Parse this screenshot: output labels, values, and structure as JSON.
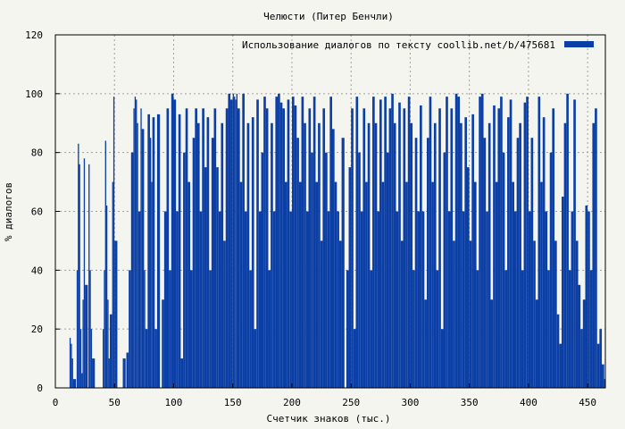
{
  "chart_data": {
    "type": "bar",
    "title": "Челюсти (Питер Бенчли)",
    "xlabel": "Счетчик знаков (тыс.)",
    "ylabel": "% диалогов",
    "xlim": [
      0,
      465
    ],
    "ylim": [
      0,
      120
    ],
    "xticks": [
      0,
      50,
      100,
      150,
      200,
      250,
      300,
      350,
      400,
      450
    ],
    "yticks": [
      0,
      20,
      40,
      60,
      80,
      100,
      120
    ],
    "grid": true,
    "legend_position": "top-right",
    "series": [
      {
        "name": "Использование диалогов по тексту  coollib.net/b/475681",
        "color": "#0b3fa6",
        "x": [
          12,
          13,
          14,
          15,
          18,
          19,
          20,
          21,
          22,
          23,
          24,
          25,
          28,
          29,
          30,
          31,
          40,
          41,
          42,
          43,
          44,
          45,
          46,
          48,
          49,
          50,
          57,
          60,
          62,
          64,
          66,
          67,
          68,
          69,
          70,
          72,
          73,
          75,
          76,
          78,
          80,
          81,
          82,
          84,
          86,
          90,
          92,
          94,
          96,
          98,
          100,
          102,
          104,
          106,
          108,
          110,
          112,
          114,
          116,
          118,
          120,
          122,
          124,
          126,
          128,
          130,
          132,
          134,
          136,
          138,
          140,
          142,
          144,
          146,
          148,
          150,
          151,
          152,
          153,
          154,
          156,
          158,
          160,
          162,
          164,
          166,
          168,
          170,
          172,
          174,
          176,
          178,
          180,
          182,
          184,
          186,
          188,
          190,
          192,
          194,
          196,
          198,
          200,
          202,
          204,
          206,
          208,
          210,
          212,
          214,
          216,
          218,
          220,
          222,
          224,
          226,
          228,
          230,
          232,
          234,
          236,
          238,
          240,
          242,
          246,
          248,
          250,
          252,
          254,
          256,
          258,
          260,
          262,
          264,
          266,
          268,
          270,
          272,
          274,
          276,
          278,
          280,
          282,
          284,
          286,
          288,
          290,
          292,
          294,
          296,
          298,
          300,
          302,
          304,
          306,
          308,
          310,
          312,
          314,
          316,
          318,
          320,
          322,
          324,
          326,
          328,
          330,
          332,
          334,
          336,
          338,
          340,
          342,
          344,
          346,
          348,
          350,
          352,
          354,
          356,
          358,
          360,
          362,
          364,
          366,
          368,
          370,
          372,
          374,
          376,
          378,
          380,
          382,
          384,
          386,
          388,
          390,
          392,
          394,
          396,
          398,
          400,
          402,
          404,
          406,
          408,
          410,
          412,
          414,
          416,
          418,
          420,
          422,
          424,
          426,
          428,
          430,
          432,
          434,
          436,
          438,
          440,
          442,
          444,
          446,
          448,
          450,
          452,
          454,
          456,
          458,
          460,
          462,
          464
        ],
        "values": [
          17,
          15,
          10,
          3,
          40,
          83,
          76,
          20,
          5,
          30,
          78,
          35,
          76,
          40,
          20,
          10,
          20,
          40,
          84,
          62,
          30,
          10,
          25,
          70,
          99,
          50,
          10,
          12,
          40,
          80,
          95,
          99,
          98,
          90,
          60,
          95,
          88,
          40,
          20,
          93,
          85,
          70,
          92,
          20,
          93,
          30,
          60,
          95,
          40,
          100,
          98,
          60,
          93,
          10,
          80,
          95,
          70,
          40,
          85,
          95,
          90,
          60,
          95,
          75,
          92,
          40,
          85,
          95,
          75,
          60,
          90,
          50,
          95,
          100,
          98,
          100,
          99,
          98,
          100,
          95,
          70,
          100,
          60,
          90,
          40,
          92,
          20,
          98,
          60,
          80,
          99,
          95,
          40,
          90,
          60,
          99,
          100,
          97,
          95,
          70,
          98,
          60,
          99,
          96,
          85,
          70,
          99,
          90,
          60,
          95,
          80,
          99,
          70,
          90,
          50,
          95,
          80,
          60,
          99,
          88,
          70,
          60,
          50,
          85,
          40,
          75,
          95,
          20,
          99,
          80,
          60,
          95,
          70,
          90,
          40,
          99,
          90,
          60,
          98,
          70,
          99,
          80,
          95,
          100,
          90,
          60,
          97,
          50,
          95,
          70,
          99,
          90,
          40,
          85,
          60,
          96,
          60,
          30,
          85,
          99,
          70,
          90,
          40,
          95,
          20,
          80,
          99,
          60,
          95,
          50,
          100,
          99,
          90,
          60,
          92,
          75,
          50,
          93,
          70,
          40,
          99,
          100,
          85,
          60,
          90,
          30,
          96,
          70,
          95,
          99,
          80,
          40,
          92,
          98,
          70,
          60,
          85,
          90,
          40,
          97,
          99,
          60,
          85,
          50,
          30,
          99,
          70,
          92,
          60,
          40,
          80,
          95,
          50,
          25,
          15,
          65,
          90,
          100,
          40,
          60,
          98,
          50,
          35,
          20,
          30,
          62,
          60,
          40,
          90,
          95,
          15,
          20,
          8,
          3
        ]
      }
    ]
  }
}
